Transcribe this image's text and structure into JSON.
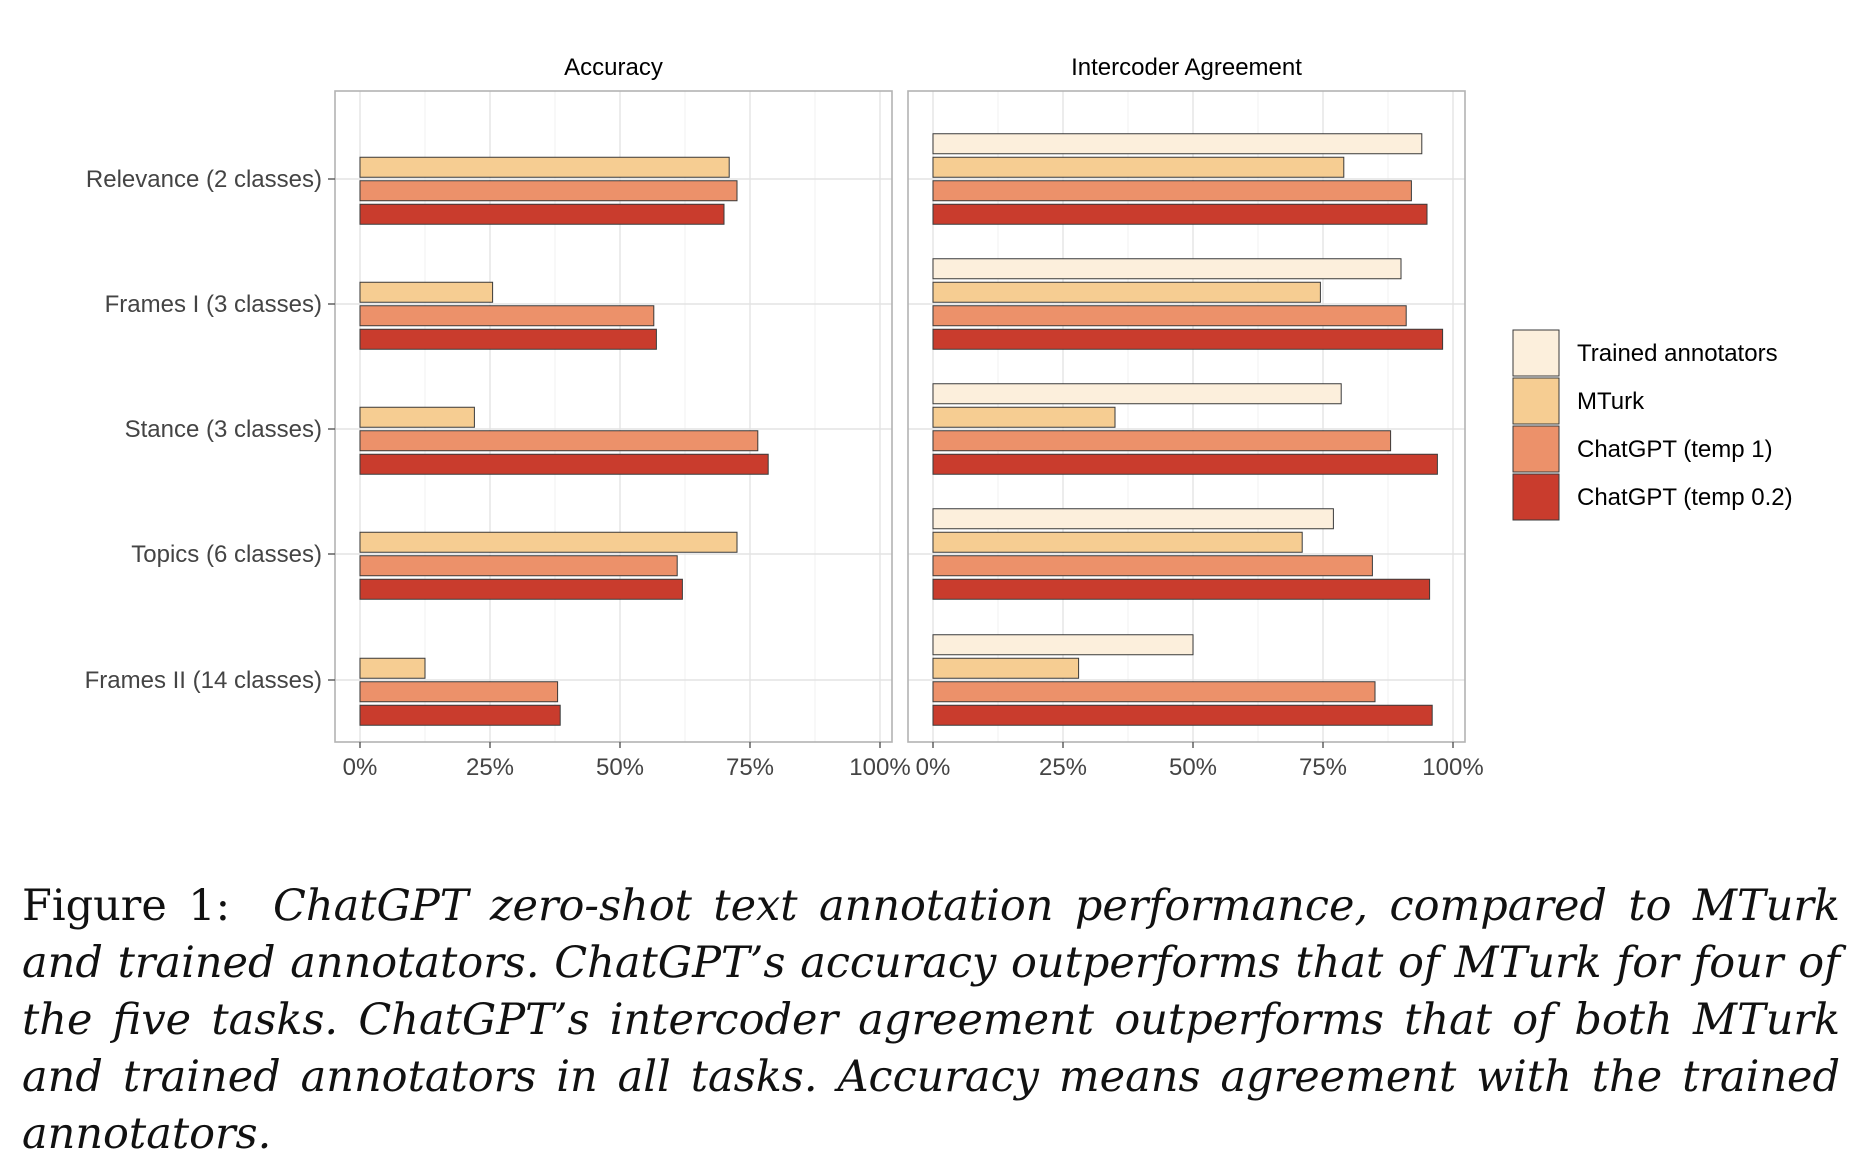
{
  "chart_data": {
    "type": "bar",
    "orientation": "horizontal",
    "categories": [
      "Relevance (2 classes)",
      "Frames I (3 classes)",
      "Stance (3 classes)",
      "Topics (6 classes)",
      "Frames II (14 classes)"
    ],
    "x_ticks": [
      "0%",
      "25%",
      "50%",
      "75%",
      "100%"
    ],
    "xlim": [
      0,
      1
    ],
    "grid": true,
    "legend_position": "right",
    "legend": [
      {
        "name": "Trained annotators",
        "color": "#fcefdc"
      },
      {
        "name": "MTurk",
        "color": "#f6cd92"
      },
      {
        "name": "ChatGPT (temp 1)",
        "color": "#ec916a"
      },
      {
        "name": "ChatGPT (temp 0.2)",
        "color": "#c93c2d"
      }
    ],
    "panels": [
      {
        "title": "Accuracy",
        "series": [
          {
            "name": "Trained annotators",
            "values": [
              null,
              null,
              null,
              null,
              null
            ]
          },
          {
            "name": "MTurk",
            "values": [
              0.71,
              0.255,
              0.22,
              0.725,
              0.125
            ]
          },
          {
            "name": "ChatGPT (temp 1)",
            "values": [
              0.725,
              0.565,
              0.765,
              0.61,
              0.38
            ]
          },
          {
            "name": "ChatGPT (temp 0.2)",
            "values": [
              0.7,
              0.57,
              0.785,
              0.62,
              0.385
            ]
          }
        ]
      },
      {
        "title": "Intercoder Agreement",
        "series": [
          {
            "name": "Trained annotators",
            "values": [
              0.94,
              0.9,
              0.785,
              0.77,
              0.5
            ]
          },
          {
            "name": "MTurk",
            "values": [
              0.79,
              0.745,
              0.35,
              0.71,
              0.28
            ]
          },
          {
            "name": "ChatGPT (temp 1)",
            "values": [
              0.92,
              0.91,
              0.88,
              0.845,
              0.85
            ]
          },
          {
            "name": "ChatGPT (temp 0.2)",
            "values": [
              0.95,
              0.98,
              0.97,
              0.955,
              0.96
            ]
          }
        ]
      }
    ]
  },
  "caption": {
    "label": "Figure 1:",
    "text": "ChatGPT zero-shot text annotation performance, compared to MTurk and trained annotators. ChatGPT’s accuracy outperforms that of MTurk for four of the five tasks. ChatGPT’s intercoder agreement outperforms that of both MTurk and trained annotators in all tasks. Accuracy means agreement with the trained annotators."
  }
}
